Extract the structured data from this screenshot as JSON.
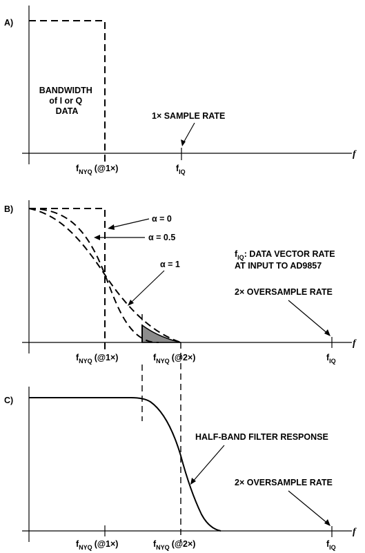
{
  "panel_a": {
    "label": "A)",
    "bandwidth_text": [
      "BANDWIDTH",
      "of I or Q",
      "DATA"
    ],
    "sample_rate": "1× SAMPLE RATE",
    "f_axis": "f",
    "fnyq_main": "f",
    "fnyq_sub": "NYQ",
    "fnyq_suffix": "(@1×)",
    "fiq_main": "f",
    "fiq_sub": "IQ"
  },
  "panel_b": {
    "label": "B)",
    "alpha0": "α = 0",
    "alpha05": "α = 0.5",
    "alpha1": "α = 1",
    "fiq_note_main": "f",
    "fiq_note_sub": "IQ",
    "fiq_note_rest": ": DATA VECTOR RATE",
    "fiq_note_line2": "AT INPUT TO AD9857",
    "oversample": "2× OVERSAMPLE RATE",
    "f_axis": "f",
    "fnyq1_main": "f",
    "fnyq1_sub": "NYQ",
    "fnyq1_suffix": "(@1×)",
    "fnyq2_main": "f",
    "fnyq2_sub": "NYQ",
    "fnyq2_suffix": "(@2×)",
    "fiq_main": "f",
    "fiq_sub": "IQ",
    "shade_color": "#8c8c8c"
  },
  "panel_c": {
    "label": "C)",
    "filter_response": "HALF-BAND FILTER RESPONSE",
    "oversample": "2× OVERSAMPLE RATE",
    "f_axis": "f",
    "fnyq1_main": "f",
    "fnyq1_sub": "NYQ",
    "fnyq1_suffix": "(@1×)",
    "fnyq2_main": "f",
    "fnyq2_sub": "NYQ",
    "fnyq2_suffix": "(@2×)",
    "fiq_main": "f",
    "fiq_sub": "IQ"
  }
}
